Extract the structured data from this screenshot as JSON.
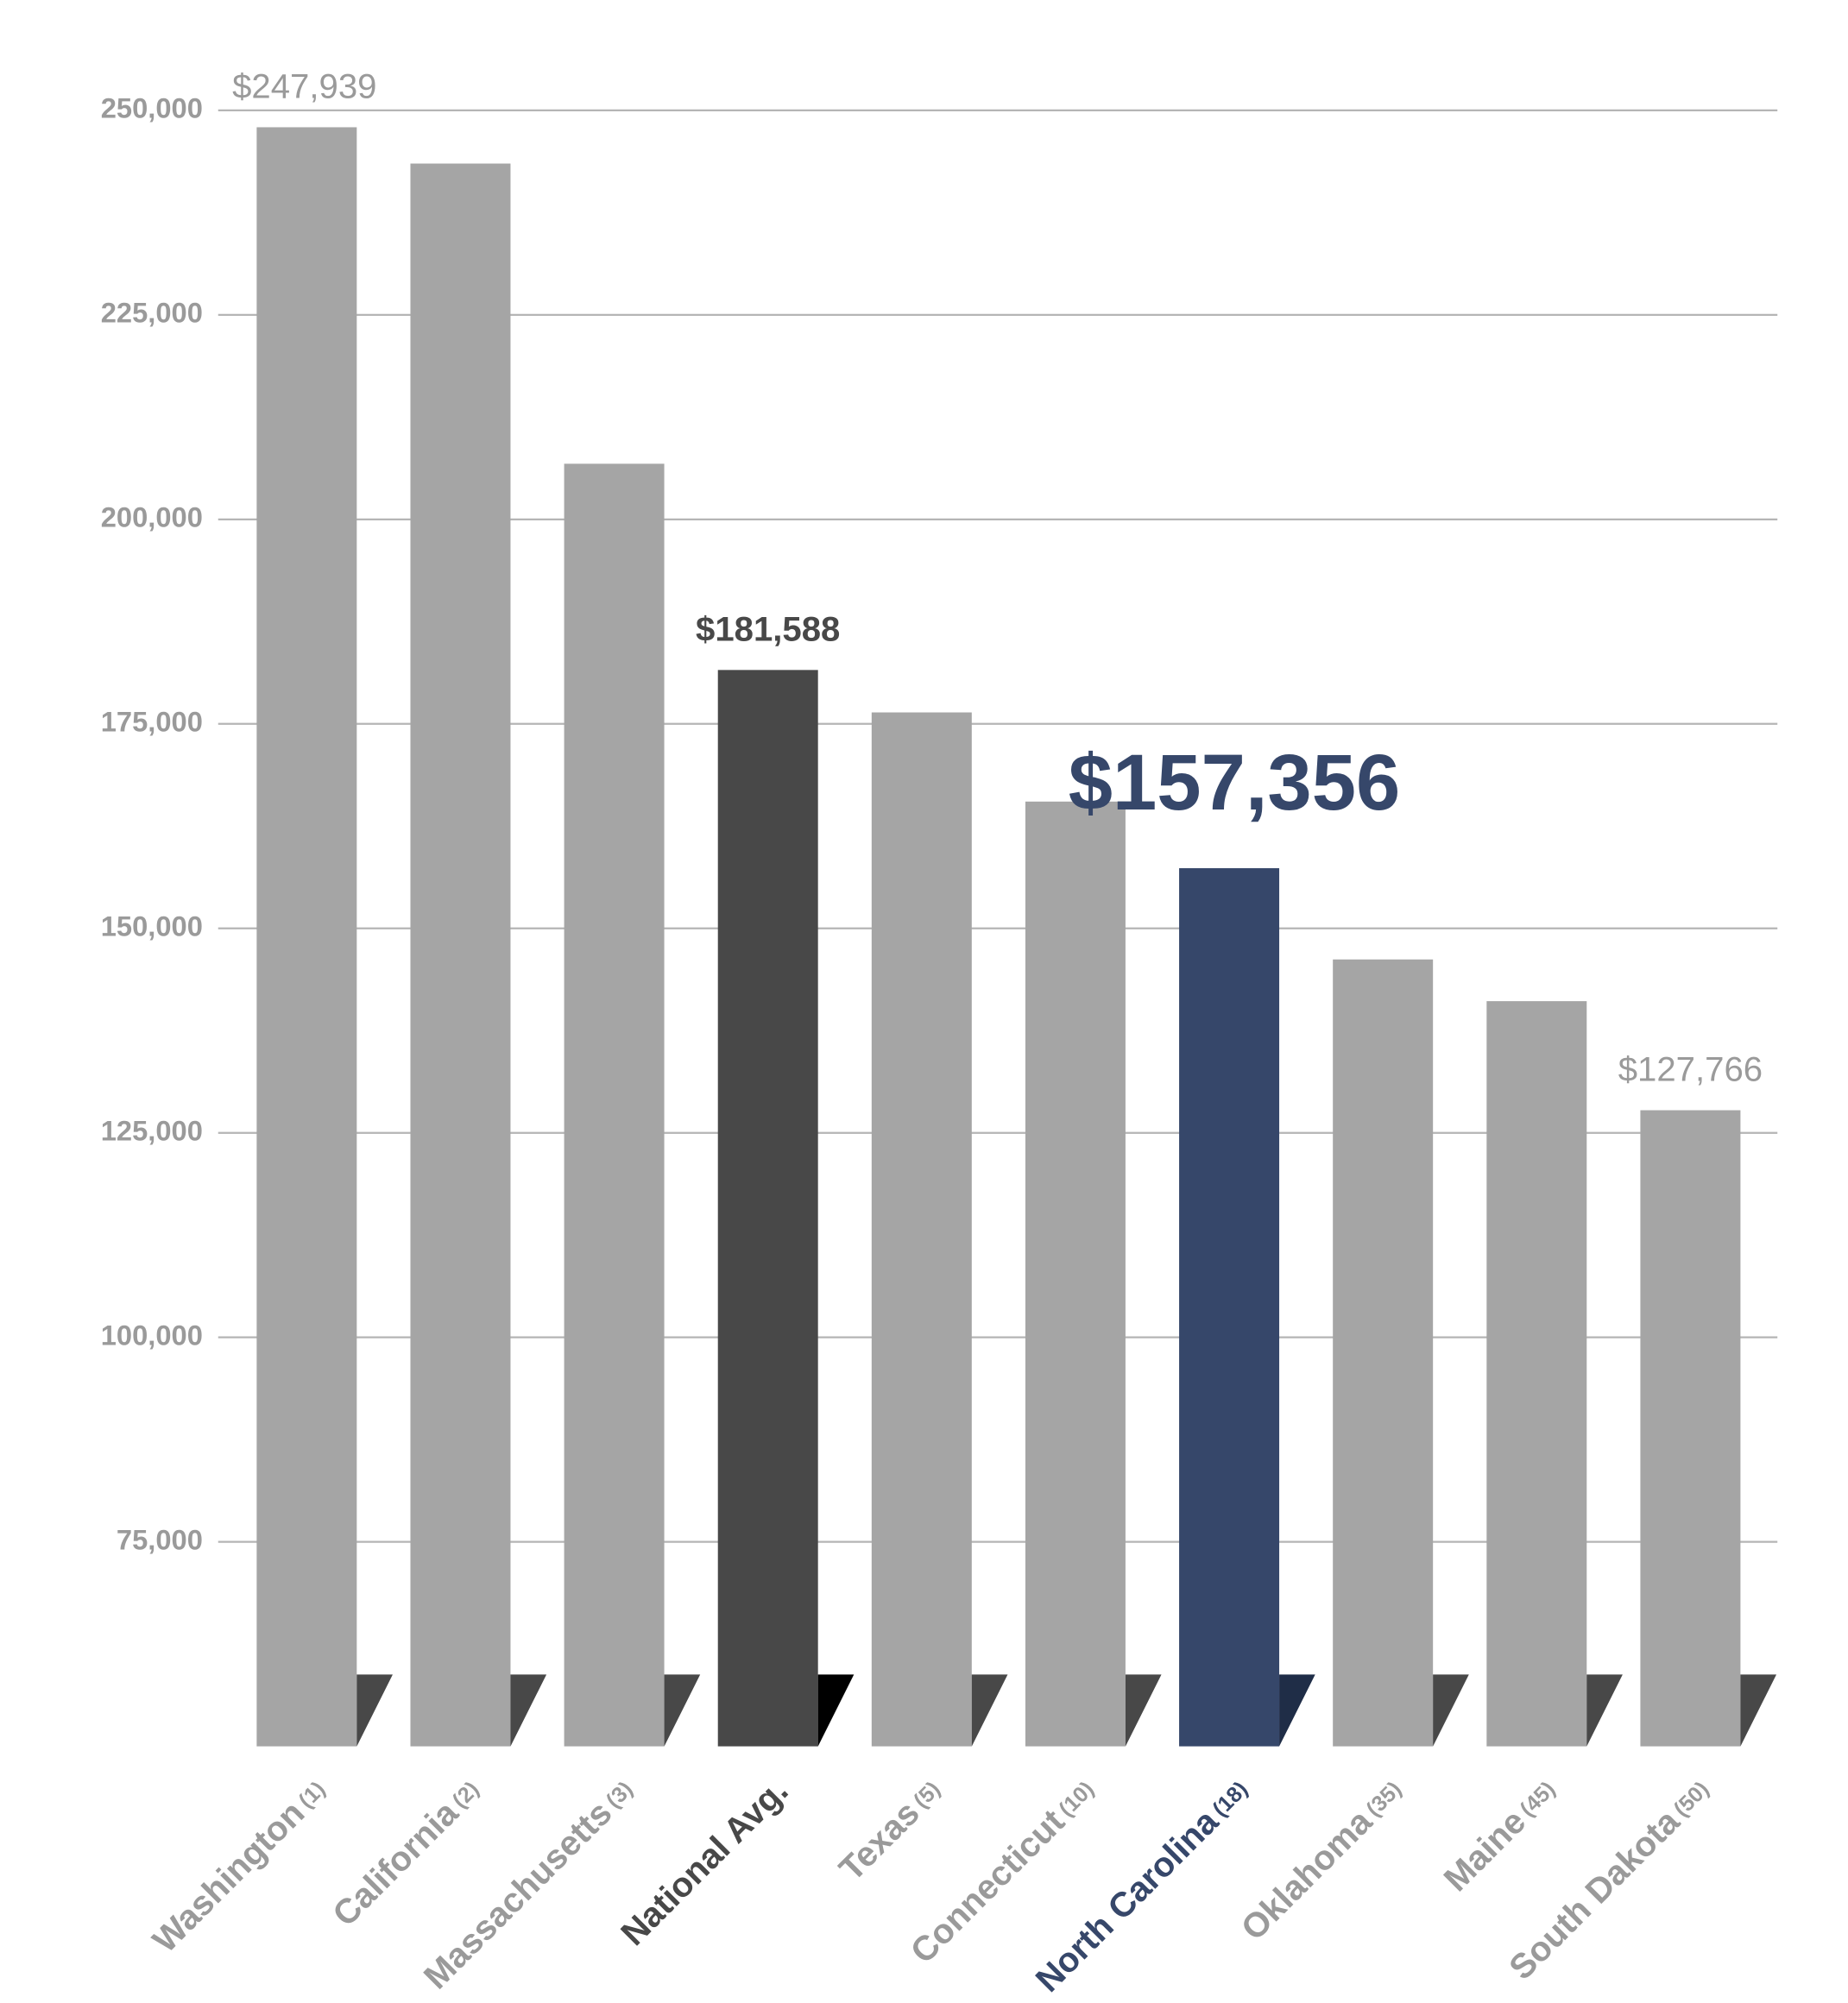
{
  "chart_data": {
    "type": "bar",
    "categories": [
      "Washington",
      "California",
      "Massachusetts",
      "National Avg.",
      "Texas",
      "Connecticut",
      "North Carolina",
      "Oklahoma",
      "Maine",
      "South Dakota"
    ],
    "ranks": [
      "(1)",
      "(2)",
      "(3)",
      null,
      "(5)",
      "(10)",
      "(18)",
      "(35)",
      "(45)",
      "(50)"
    ],
    "values": [
      247939,
      243500,
      206800,
      181588,
      176400,
      165500,
      157356,
      146200,
      141100,
      127766
    ],
    "value_labels": [
      "$247,939",
      null,
      null,
      "$181,588",
      null,
      null,
      "$157,356",
      null,
      null,
      "$127,766"
    ],
    "colors": [
      "#a5a5a5",
      "#a5a5a5",
      "#a5a5a5",
      "#484848",
      "#a5a5a5",
      "#a5a5a5",
      "#36476a",
      "#a5a5a5",
      "#a5a5a5",
      "#a5a5a5"
    ],
    "ylim": [
      50000,
      250000
    ],
    "yticks": [
      {
        "value": 75000,
        "label": "75,000"
      },
      {
        "value": 100000,
        "label": "100,000"
      },
      {
        "value": 125000,
        "label": "125,000"
      },
      {
        "value": 150000,
        "label": "150,000"
      },
      {
        "value": 175000,
        "label": "175,000"
      },
      {
        "value": 200000,
        "label": "200,000"
      },
      {
        "value": 225000,
        "label": "225,000"
      },
      {
        "value": 250000,
        "label": "250,000"
      }
    ],
    "grid": true
  }
}
